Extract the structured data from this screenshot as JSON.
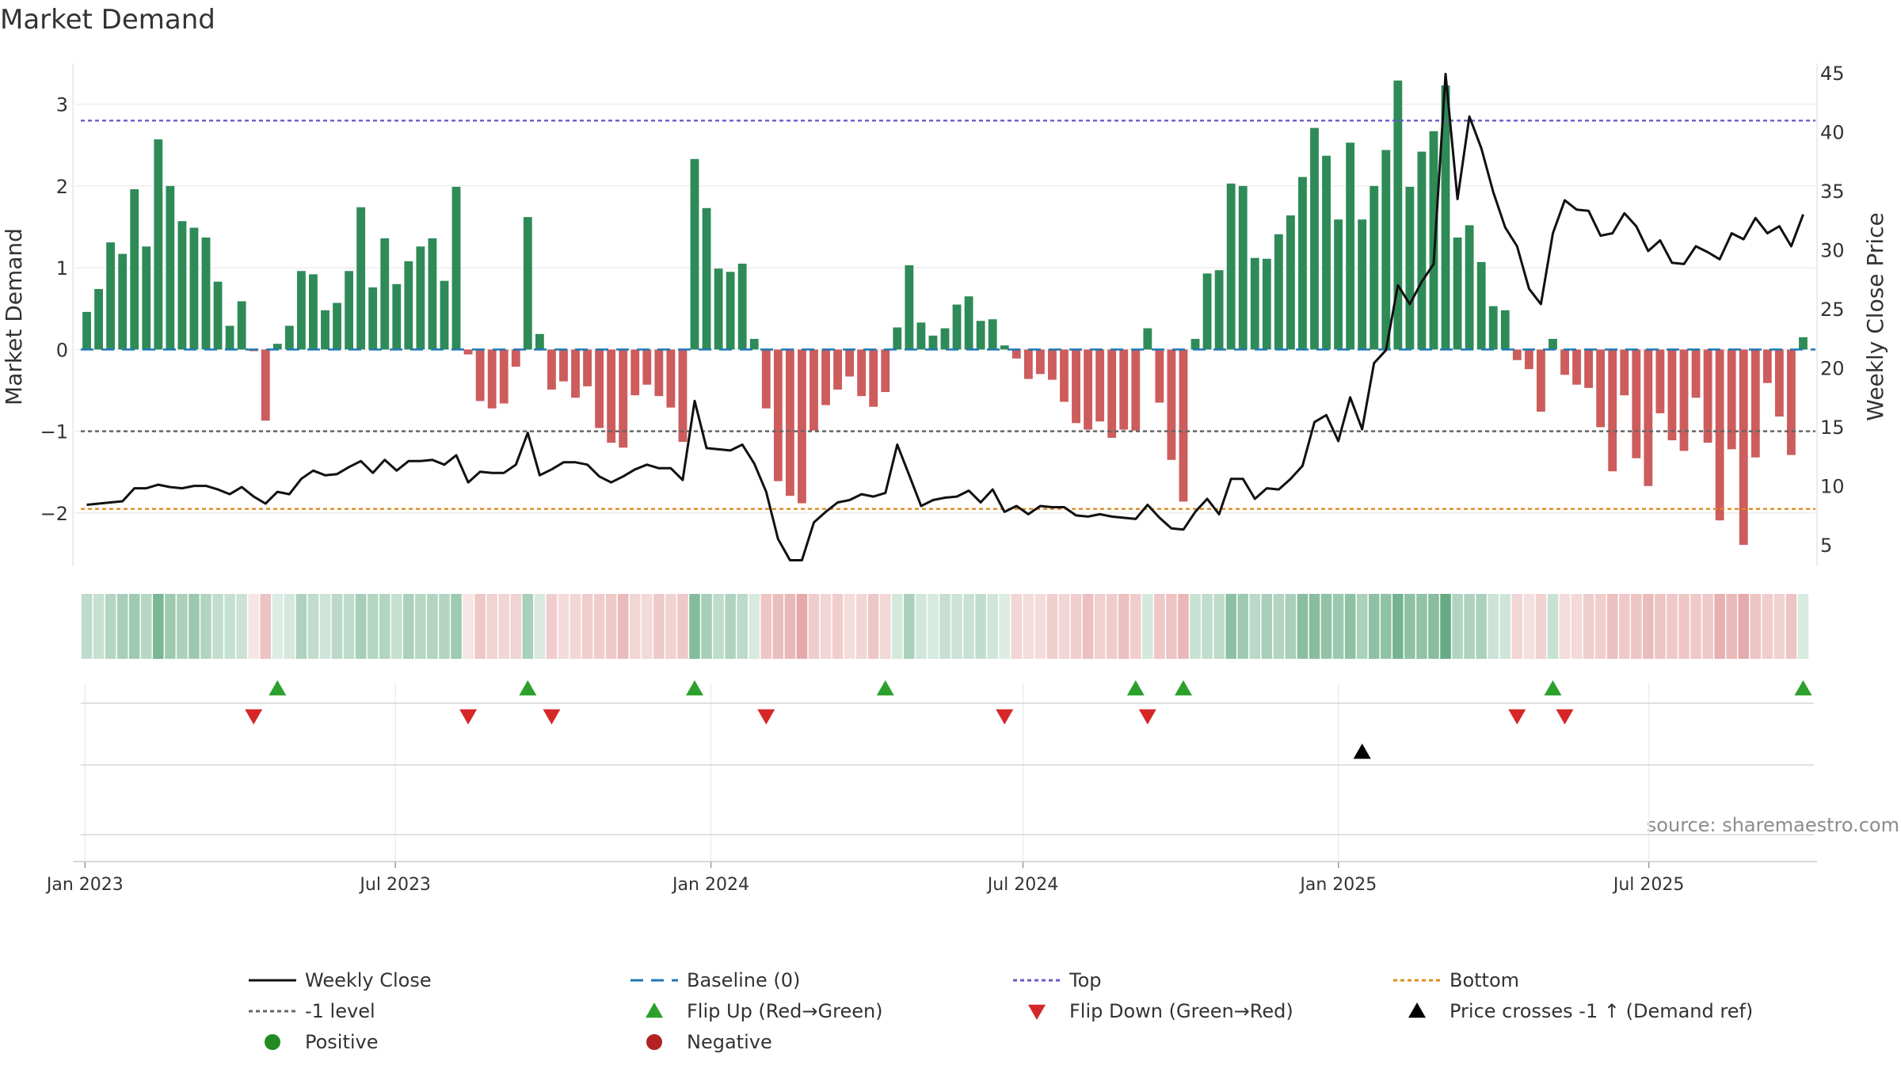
{
  "chart_data": {
    "type": "bar",
    "title": "Market Demand",
    "ylabel_left": "Market Demand",
    "ylabel_right": "Weekly Close Price",
    "source_text": "source: sharemaestro.com",
    "x_start": "2023-01-02",
    "x_end": "2025-09-29",
    "x_ticks": [
      {
        "date": "2023-01-01",
        "label": "Jan 2023"
      },
      {
        "date": "2023-07-01",
        "label": "Jul 2023"
      },
      {
        "date": "2024-01-01",
        "label": "Jan 2024"
      },
      {
        "date": "2024-07-01",
        "label": "Jul 2024"
      },
      {
        "date": "2025-01-01",
        "label": "Jan 2025"
      },
      {
        "date": "2025-07-01",
        "label": "Jul 2025"
      }
    ],
    "ylim_left": [
      -2.65,
      3.5
    ],
    "yticks_left": [
      {
        "v": 3,
        "label": "3"
      },
      {
        "v": 2,
        "label": "2"
      },
      {
        "v": 1,
        "label": "1"
      },
      {
        "v": 0,
        "label": "0"
      },
      {
        "v": -1,
        "label": "−1"
      },
      {
        "v": -2,
        "label": "−2"
      }
    ],
    "ylim_right": [
      3.2,
      45.8
    ],
    "yticks_right": [
      {
        "v": 45,
        "label": "45"
      },
      {
        "v": 40,
        "label": "40"
      },
      {
        "v": 35,
        "label": "35"
      },
      {
        "v": 30,
        "label": "30"
      },
      {
        "v": 25,
        "label": "25"
      },
      {
        "v": 20,
        "label": "20"
      },
      {
        "v": 15,
        "label": "15"
      },
      {
        "v": 10,
        "label": "10"
      },
      {
        "v": 5,
        "label": "5"
      }
    ],
    "reference_lines": {
      "top": 2.8,
      "bottom": -1.95,
      "minus_one": -1,
      "baseline": 0
    },
    "demand": [
      0.46,
      0.74,
      1.31,
      1.17,
      1.96,
      1.26,
      2.57,
      2.0,
      1.57,
      1.49,
      1.37,
      0.83,
      0.29,
      0.59,
      -0.02,
      -0.87,
      0.07,
      0.29,
      0.96,
      0.92,
      0.48,
      0.57,
      0.96,
      1.74,
      0.76,
      1.36,
      0.8,
      1.08,
      1.26,
      1.36,
      0.84,
      1.99,
      -0.06,
      -0.63,
      -0.72,
      -0.66,
      -0.21,
      1.62,
      0.19,
      -0.49,
      -0.39,
      -0.59,
      -0.45,
      -0.96,
      -1.14,
      -1.2,
      -0.56,
      -0.43,
      -0.57,
      -0.71,
      -1.13,
      2.33,
      1.73,
      0.99,
      0.95,
      1.05,
      0.13,
      -0.72,
      -1.61,
      -1.79,
      -1.88,
      -0.99,
      -0.68,
      -0.49,
      -0.33,
      -0.57,
      -0.7,
      -0.52,
      0.27,
      1.03,
      0.33,
      0.17,
      0.26,
      0.55,
      0.65,
      0.35,
      0.37,
      0.05,
      -0.11,
      -0.36,
      -0.3,
      -0.37,
      -0.64,
      -0.9,
      -0.98,
      -0.88,
      -1.08,
      -0.98,
      -0.99,
      0.26,
      -0.65,
      -1.35,
      -1.86,
      0.13,
      0.93,
      0.97,
      2.03,
      2.0,
      1.12,
      1.11,
      1.41,
      1.64,
      2.11,
      2.71,
      2.37,
      1.59,
      2.53,
      1.59,
      2.0,
      2.44,
      3.29,
      1.99,
      2.42,
      2.67,
      3.23,
      1.37,
      1.52,
      1.07,
      0.53,
      0.48,
      -0.13,
      -0.24,
      -0.76,
      0.13,
      -0.31,
      -0.43,
      -0.47,
      -0.95,
      -1.49,
      -0.56,
      -1.33,
      -1.67,
      -0.78,
      -1.11,
      -1.24,
      -0.59,
      -1.14,
      -2.09,
      -1.22,
      -2.39,
      -1.32,
      -0.41,
      -0.82,
      -1.29,
      0.15
    ],
    "price": [
      8.4,
      8.5,
      8.6,
      8.7,
      9.8,
      9.8,
      10.1,
      9.9,
      9.8,
      10.0,
      10.0,
      9.7,
      9.3,
      9.9,
      9.1,
      8.5,
      9.5,
      9.3,
      10.6,
      11.3,
      10.9,
      11.0,
      11.6,
      12.1,
      11.1,
      12.2,
      11.3,
      12.1,
      12.1,
      12.2,
      11.8,
      12.6,
      10.3,
      11.2,
      11.1,
      11.1,
      11.8,
      14.5,
      10.9,
      11.4,
      12.0,
      12.0,
      11.8,
      10.8,
      10.3,
      10.8,
      11.4,
      11.8,
      11.5,
      11.5,
      10.5,
      17.2,
      13.2,
      13.1,
      13.0,
      13.5,
      11.9,
      9.5,
      5.5,
      3.7,
      3.7,
      6.9,
      7.8,
      8.6,
      8.8,
      9.3,
      9.1,
      9.4,
      13.5,
      10.9,
      8.3,
      8.8,
      9.0,
      9.1,
      9.6,
      8.6,
      9.7,
      7.8,
      8.3,
      7.6,
      8.3,
      8.2,
      8.2,
      7.5,
      7.4,
      7.6,
      7.4,
      7.3,
      7.2,
      8.4,
      7.3,
      6.4,
      6.3,
      7.8,
      8.9,
      7.6,
      10.6,
      10.6,
      8.9,
      9.8,
      9.7,
      10.6,
      11.7,
      15.4,
      16.0,
      13.8,
      17.5,
      14.8,
      20.4,
      21.5,
      27.0,
      25.4,
      27.3,
      28.8,
      44.9,
      34.3,
      41.3,
      38.6,
      34.9,
      31.9,
      30.3,
      26.7,
      25.4,
      31.4,
      34.2,
      33.4,
      33.3,
      31.2,
      31.4,
      33.1,
      32.0,
      29.9,
      30.8,
      28.9,
      28.8,
      30.3,
      29.8,
      29.2,
      31.4,
      30.9,
      32.7,
      31.4,
      32.0,
      30.3,
      33.0
    ],
    "heat_strip_levels": [
      2,
      1,
      1,
      2,
      1,
      1,
      2,
      1,
      1,
      2,
      1,
      1,
      2,
      1,
      1,
      2,
      1,
      1,
      2,
      1,
      1,
      2,
      1,
      1,
      2,
      1,
      1,
      2,
      1,
      1,
      2,
      1,
      1,
      2,
      1,
      1,
      2,
      1,
      1,
      2,
      1,
      1,
      2,
      1,
      1,
      2,
      1,
      1,
      2,
      1,
      1,
      2,
      1,
      1,
      2,
      1,
      1,
      2,
      1,
      1,
      2,
      1,
      1,
      2,
      1,
      1,
      2,
      1,
      1,
      2,
      1,
      1,
      2,
      1,
      1,
      2,
      1,
      1,
      2,
      1,
      1,
      2,
      1,
      1,
      2,
      1,
      1,
      2,
      1,
      1,
      2,
      1,
      1,
      2,
      1,
      1,
      2,
      1,
      1,
      2,
      1,
      1,
      2,
      1,
      1,
      2,
      1,
      1,
      2,
      1,
      1,
      2,
      1,
      1,
      2,
      1,
      1,
      2,
      1,
      1,
      2,
      1,
      1,
      2,
      1,
      1,
      2,
      1,
      1,
      2,
      1,
      1,
      2,
      1,
      1,
      2,
      1,
      1,
      2,
      1,
      1,
      2,
      1,
      1
    ],
    "flip_up_weeks": [
      16,
      37,
      51,
      67,
      88,
      92,
      123,
      144
    ],
    "flip_down_weeks": [
      14,
      32,
      39,
      57,
      77,
      89,
      120,
      124
    ],
    "price_cross_weeks": [
      107
    ],
    "colors": {
      "positive": "#2e8b57",
      "negative": "#cd5c5c",
      "price": "#111111",
      "baseline": "#1f77b4",
      "top": "#6a5acd",
      "bottom": "#e08a1e",
      "minus_one": "#666666",
      "flip_up": "#2ca02c",
      "flip_down": "#d62728",
      "cross": "#000000",
      "legend_positive": "#228b22",
      "legend_negative": "#b22222"
    },
    "legend": [
      {
        "key": "price",
        "label": "Weekly Close"
      },
      {
        "key": "baseline",
        "label": "Baseline (0)"
      },
      {
        "key": "top",
        "label": "Top"
      },
      {
        "key": "bottom",
        "label": "Bottom"
      },
      {
        "key": "minus_one",
        "label": "-1 level"
      },
      {
        "key": "flip_up",
        "label": "Flip Up (Red→Green)"
      },
      {
        "key": "flip_down",
        "label": "Flip Down (Green→Red)"
      },
      {
        "key": "cross",
        "label": "Price crosses -1 ↑ (Demand ref)"
      },
      {
        "key": "positive",
        "label": "Positive"
      },
      {
        "key": "negative",
        "label": "Negative"
      }
    ]
  }
}
